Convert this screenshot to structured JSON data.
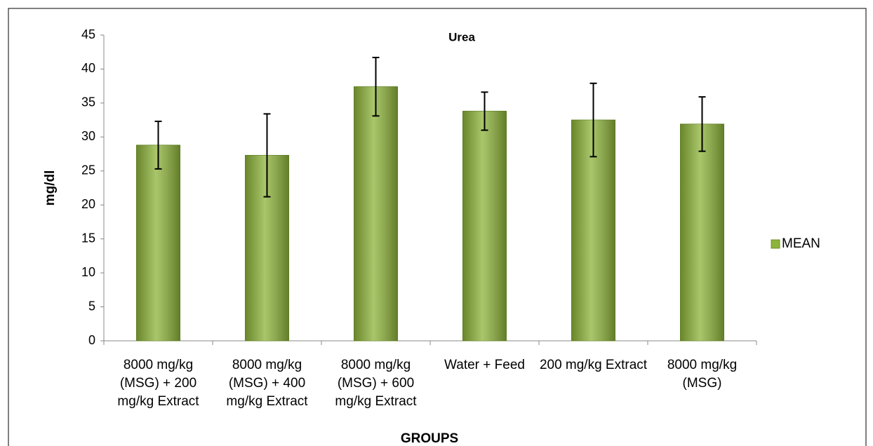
{
  "chart_data": {
    "type": "bar",
    "title": "Urea",
    "x_label": "GROUPS",
    "y_label": "mg/dl",
    "categories": [
      "8000 mg/kg (MSG) + 200 mg/kg Extract",
      "8000 mg/kg (MSG) + 400 mg/kg Extract",
      "8000 mg/kg (MSG) + 600 mg/kg Extract",
      "Water + Feed",
      "200 mg/kg Extract",
      "8000 mg/kg (MSG)"
    ],
    "series": [
      {
        "name": "MEAN",
        "color": "#8db33a",
        "values": [
          28.8,
          27.3,
          37.4,
          33.8,
          32.5,
          31.9
        ],
        "errors": [
          3.5,
          6.1,
          4.3,
          2.8,
          5.4,
          4.0
        ]
      }
    ],
    "ylim": [
      0,
      45
    ],
    "yticks": [
      0,
      5,
      10,
      15,
      20,
      25,
      30,
      35,
      40,
      45
    ],
    "grid": false,
    "legend": "right"
  }
}
